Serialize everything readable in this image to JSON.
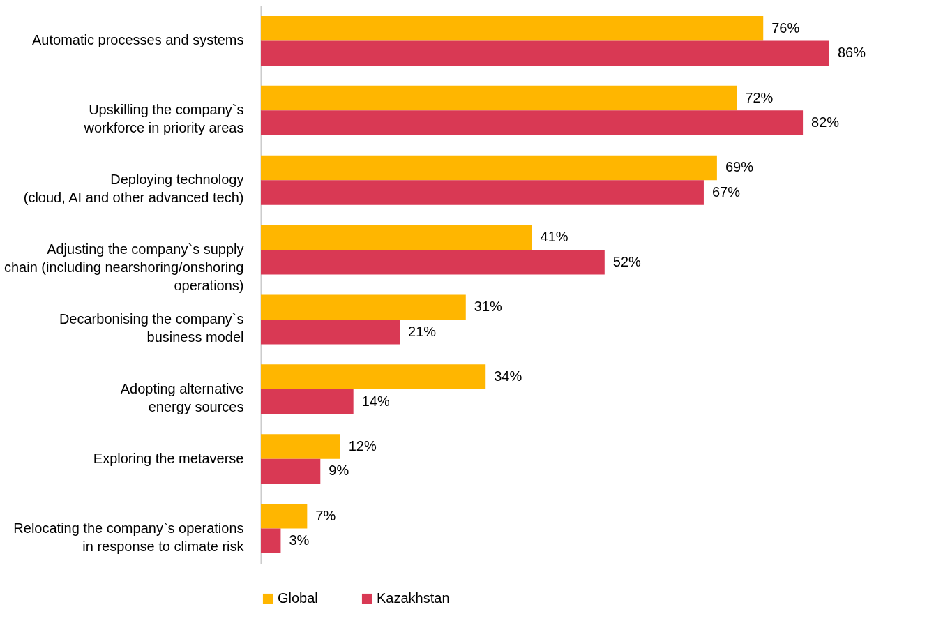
{
  "chart_data": {
    "type": "bar",
    "orientation": "horizontal",
    "categories": [
      "Automatic processes and systems",
      "Upskilling the company`s\nworkforce in priority areas",
      "Deploying technology\n(cloud, AI and other advanced tech)",
      "Adjusting the company`s supply\nchain (including nearshoring/onshoring\noperations)",
      "Decarbonising the company`s\nbusiness model",
      "Adopting alternative\nenergy sources",
      "Exploring the metaverse",
      "Relocating the company`s operations\nin response to climate risk"
    ],
    "series": [
      {
        "name": "Global",
        "color": "#ffb600",
        "values": [
          76,
          72,
          69,
          41,
          31,
          34,
          12,
          7
        ],
        "value_labels": [
          "76%",
          "72%",
          "69%",
          "41%",
          "31%",
          "34%",
          "12%",
          "7%"
        ]
      },
      {
        "name": "Kazakhstan",
        "color": "#d93954",
        "values": [
          86,
          82,
          67,
          52,
          21,
          14,
          9,
          3
        ],
        "value_labels": [
          "86%",
          "82%",
          "67%",
          "52%",
          "21%",
          "14%",
          "9%",
          "3%"
        ]
      }
    ],
    "legend": "bottom",
    "grid": false
  }
}
